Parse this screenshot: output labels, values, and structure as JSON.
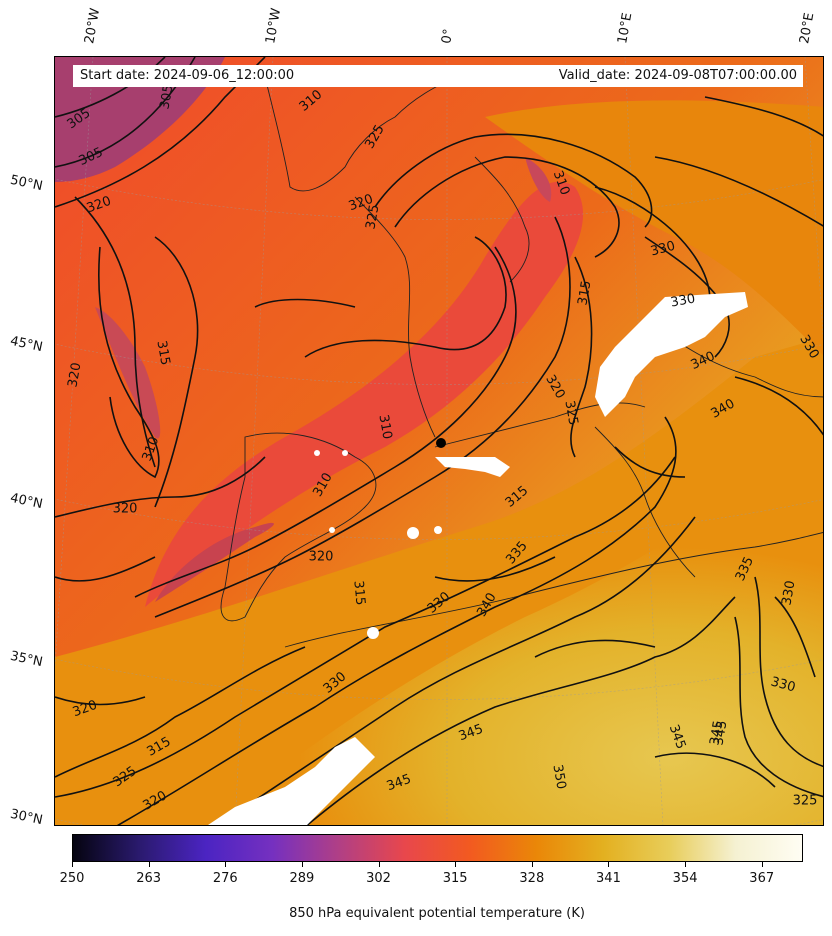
{
  "header": {
    "start_date": "Start date: 2024-09-06_12:00:00",
    "valid_date": "Valid_date: 2024-09-08T07:00:00.00"
  },
  "axes": {
    "longitude_labels": [
      "20°W",
      "10°W",
      "0°",
      "10°E",
      "20°E"
    ],
    "latitude_labels": [
      "50°N",
      "45°N",
      "40°N",
      "35°N",
      "30°N"
    ]
  },
  "contour_labels": [
    "305",
    "305",
    "310",
    "305",
    "320",
    "315",
    "320",
    "310",
    "325",
    "325",
    "320",
    "310",
    "330",
    "330",
    "340",
    "340",
    "330",
    "315",
    "320",
    "325",
    "310",
    "310",
    "315",
    "320",
    "320",
    "315",
    "330",
    "335",
    "340",
    "335",
    "330",
    "330",
    "325",
    "345",
    "345",
    "345",
    "350",
    "345",
    "345",
    "330",
    "320",
    "315",
    "325",
    "320"
  ],
  "colorbar": {
    "tick_labels": [
      "250",
      "263",
      "276",
      "289",
      "302",
      "315",
      "328",
      "341",
      "354",
      "367"
    ],
    "min": 250,
    "max": 374,
    "label": "850 hPa equivalent potential temperature (K)",
    "colormap": [
      "#050410",
      "#2a1a6e",
      "#4b24c2",
      "#7530c0",
      "#b03f86",
      "#e8474c",
      "#f25a20",
      "#ea8708",
      "#e3b020",
      "#e8cd5a",
      "#f5f1d2",
      "#fffdf3"
    ]
  },
  "colors": {
    "field_low": "#a33c72",
    "field_mid": "#f04a2c",
    "field_warm": "#e8820a",
    "field_high": "#e2b833",
    "contour": "#111111"
  }
}
